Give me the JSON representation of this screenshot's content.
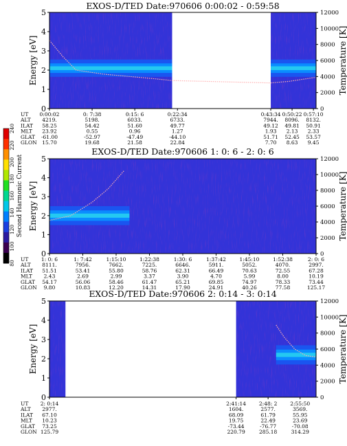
{
  "colorbar": {
    "label": "Second Harmonic Current",
    "ticks": [
      80,
      100,
      120,
      140,
      160,
      180,
      200,
      220,
      240
    ],
    "colors": [
      "#000000",
      "#3a0050",
      "#2a1aa0",
      "#1a40e0",
      "#0080ff",
      "#00c8e8",
      "#00d890",
      "#20e020",
      "#b0e800",
      "#ffe000",
      "#ff9000",
      "#ff3000",
      "#e00000"
    ]
  },
  "chart_data": [
    {
      "type": "heatmap",
      "title": "EXOS-D/TED   Date:970606   0:00:02 - 0:59:58",
      "ylabel": "Energy [eV]",
      "ylabel_right": "Temperature [K]",
      "ylim": [
        0,
        5
      ],
      "ylim_right": [
        0,
        12000
      ],
      "yticks": [
        "0",
        "1",
        "2",
        "3",
        "4",
        "5"
      ],
      "yticks_right": [
        "0",
        "2000",
        "4000",
        "6000",
        "8000",
        "10000",
        "12000"
      ],
      "data_segments": [
        [
          0.0,
          0.46
        ],
        [
          0.83,
          1.0
        ]
      ],
      "band": {
        "center_ev": 2.1,
        "half_width_ev": 0.45
      },
      "temperature_curve": [
        [
          0.0,
          8500
        ],
        [
          0.05,
          6500
        ],
        [
          0.1,
          4800
        ],
        [
          0.2,
          4300
        ],
        [
          0.3,
          4000
        ],
        [
          0.4,
          3700
        ],
        [
          0.46,
          3500
        ],
        [
          0.83,
          3200
        ],
        [
          0.9,
          3400
        ],
        [
          1.0,
          3900
        ]
      ],
      "orbit_table": {
        "row_labels": [
          "UT",
          "ALT",
          "ILAT",
          "MLT",
          "GLAT",
          "GLON"
        ],
        "columns": [
          {
            "pos": 0.0,
            "values": [
              "0:00:02",
              "4219.",
              "58.25",
              "23.92",
              "-61.00",
              "15.70"
            ]
          },
          {
            "pos": 0.16,
            "values": [
              "0: 7:38",
              "5198.",
              "54.42",
              "0.55",
              "-52.97",
              "19.68"
            ]
          },
          {
            "pos": 0.32,
            "values": [
              "0:15: 6",
              "6033.",
              "51.60",
              "0.96",
              "-47.49",
              "21.58"
            ]
          },
          {
            "pos": 0.48,
            "values": [
              "0:22:34",
              "6733.",
              "49.77",
              "1.27",
              "-44.10",
              "22.84"
            ]
          },
          {
            "pos": 0.83,
            "values": [
              "0:43:34",
              "7944.",
              "49.12",
              "1.93",
              "51.71",
              "7.70"
            ]
          },
          {
            "pos": 0.91,
            "values": [
              "0:50:22",
              "8096.",
              "49.81",
              "2.13",
              "52.45",
              "8.63"
            ]
          },
          {
            "pos": 0.99,
            "values": [
              "0:57:10",
              "8132.",
              "50.91",
              "2.33",
              "53.57",
              "9.45"
            ]
          }
        ]
      }
    },
    {
      "type": "heatmap",
      "title": "EXOS-D/TED   Date:970606   1: 0: 6 - 2: 0: 6",
      "ylabel": "Energy [eV]",
      "ylabel_right": "Temperature [K]",
      "ylim": [
        0,
        5
      ],
      "ylim_right": [
        0,
        12000
      ],
      "yticks": [
        "0",
        "1",
        "2",
        "3",
        "4",
        "5"
      ],
      "yticks_right": [
        "0",
        "2000",
        "4000",
        "6000",
        "8000",
        "10000",
        "12000"
      ],
      "data_segments": [
        [
          0.0,
          1.0
        ]
      ],
      "band": {
        "center_ev": 2.0,
        "half_width_ev": 0.5,
        "until": 0.3
      },
      "temperature_curve": [
        [
          0.0,
          4200
        ],
        [
          0.08,
          4800
        ],
        [
          0.16,
          6500
        ],
        [
          0.22,
          8200
        ],
        [
          0.28,
          10500
        ]
      ],
      "orbit_table": {
        "row_labels": [
          "UT",
          "ALT",
          "ILAT",
          "MLT",
          "GLAT",
          "GLON"
        ],
        "columns": [
          {
            "pos": 0.0,
            "values": [
              "1: 0: 6",
              "8111.",
              "51.51",
              "2.43",
              "54.17",
              "9.80"
            ]
          },
          {
            "pos": 0.125,
            "values": [
              "1: 7:42",
              "7956.",
              "53.41",
              "2.69",
              "56.06",
              "10.83"
            ]
          },
          {
            "pos": 0.25,
            "values": [
              "1:15:10",
              "7662.",
              "55.80",
              "2.99",
              "58.46",
              "12.20"
            ]
          },
          {
            "pos": 0.375,
            "values": [
              "1:22:38",
              "7225.",
              "58.76",
              "3.37",
              "61.47",
              "14.31"
            ]
          },
          {
            "pos": 0.5,
            "values": [
              "1:30: 6",
              "6646.",
              "62.31",
              "3.90",
              "65.21",
              "17.90"
            ]
          },
          {
            "pos": 0.625,
            "values": [
              "1:37:42",
              "5911.",
              "66.49",
              "4.70",
              "69.85",
              "24.91"
            ]
          },
          {
            "pos": 0.75,
            "values": [
              "1:45:10",
              "5052.",
              "70.63",
              "5.99",
              "74.97",
              "40.26"
            ]
          },
          {
            "pos": 0.875,
            "values": [
              "1:52:38",
              "4070.",
              "72.55",
              "8.00",
              "78.33",
              "77.58"
            ]
          },
          {
            "pos": 1.0,
            "values": [
              "2: 0: 6",
              "2997.",
              "67.28",
              "10.19",
              "73.44",
              "125.17"
            ]
          }
        ]
      }
    },
    {
      "type": "heatmap",
      "title": "EXOS-D/TED   Date:970606   2: 0:14 - 3: 0:14",
      "ylabel": "Energy [eV]",
      "ylabel_right": "Temperature [K]",
      "ylim": [
        0,
        5
      ],
      "ylim_right": [
        0,
        12000
      ],
      "yticks": [
        "0",
        "1",
        "2",
        "3",
        "4",
        "5"
      ],
      "yticks_right": [
        "0",
        "2000",
        "4000",
        "6000",
        "8000",
        "10000",
        "12000"
      ],
      "data_segments": [
        [
          0.0,
          0.06
        ],
        [
          0.7,
          1.0
        ]
      ],
      "band": {
        "center_ev": 2.2,
        "half_width_ev": 0.5,
        "from": 0.85
      },
      "temperature_curve": [
        [
          0.85,
          9000
        ],
        [
          0.88,
          7500
        ],
        [
          0.92,
          6000
        ],
        [
          0.96,
          5200
        ],
        [
          1.0,
          5000
        ]
      ],
      "orbit_table": {
        "row_labels": [
          "UT",
          "ALT",
          "ILAT",
          "MLT",
          "GLAT",
          "GLON"
        ],
        "columns": [
          {
            "pos": 0.0,
            "values": [
              "2: 0:14",
              "2977.",
              "67.10",
              "10.23",
              "73.25",
              "125.79"
            ]
          },
          {
            "pos": 0.7,
            "values": [
              "2:41:14",
              "1604.",
              "68.09",
              "19.75",
              "-73.44",
              "220.79"
            ]
          },
          {
            "pos": 0.82,
            "values": [
              "2:48: 2",
              "2577.",
              "61.79",
              "22.49",
              "-76.77",
              "285.18"
            ]
          },
          {
            "pos": 0.94,
            "values": [
              "2:55:50",
              "3569.",
              "55.95",
              "23.69",
              "-70.08",
              "314.29"
            ]
          }
        ]
      }
    }
  ]
}
